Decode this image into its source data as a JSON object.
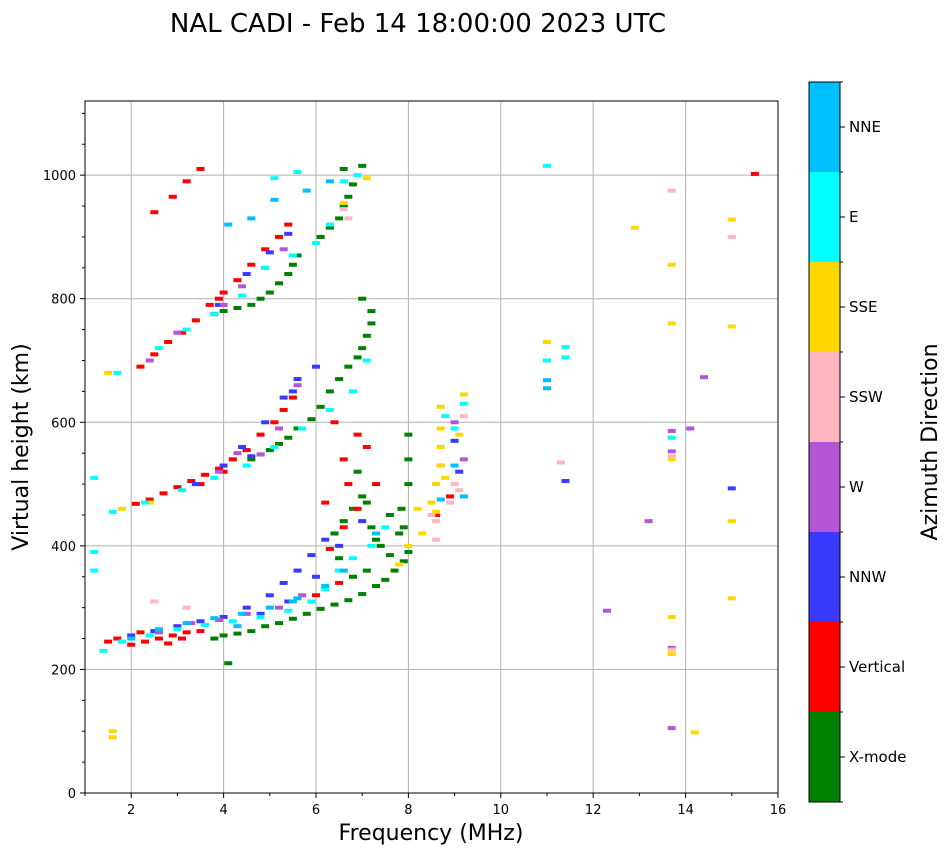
{
  "chart_data": {
    "type": "scatter",
    "title": "NAL CADI - Feb 14 18:00:00 2023 UTC",
    "xlabel": "Frequency (MHz)",
    "ylabel": "Virtual height (km)",
    "xlim": [
      1,
      16
    ],
    "ylim": [
      0,
      1120
    ],
    "xticks": [
      2,
      4,
      6,
      8,
      10,
      12,
      14,
      16
    ],
    "yticks": [
      0,
      200,
      400,
      600,
      800,
      1000
    ],
    "grid": true,
    "colorbar": {
      "label": "Azimuth Direction",
      "categories": [
        "X-mode",
        "Vertical",
        "NNW",
        "W",
        "SSW",
        "SSE",
        "E",
        "NNE"
      ],
      "colors": [
        "#008000",
        "#ff0000",
        "#3a3aff",
        "#b455d6",
        "#ffb6c1",
        "#ffd700",
        "#00ffff",
        "#00bfff"
      ]
    },
    "series": [
      {
        "name": "X-mode",
        "points": [
          [
            3.8,
            250
          ],
          [
            4.0,
            255
          ],
          [
            4.3,
            258
          ],
          [
            4.6,
            262
          ],
          [
            4.9,
            270
          ],
          [
            5.2,
            275
          ],
          [
            5.5,
            282
          ],
          [
            5.8,
            290
          ],
          [
            6.1,
            298
          ],
          [
            6.4,
            305
          ],
          [
            6.7,
            312
          ],
          [
            7.0,
            322
          ],
          [
            7.3,
            335
          ],
          [
            7.5,
            345
          ],
          [
            7.7,
            360
          ],
          [
            7.9,
            375
          ],
          [
            8.0,
            390
          ],
          [
            7.8,
            420
          ],
          [
            7.85,
            460
          ],
          [
            8.0,
            500
          ],
          [
            8.0,
            540
          ],
          [
            8.0,
            580
          ],
          [
            4.1,
            210
          ],
          [
            4.6,
            540
          ],
          [
            4.8,
            548
          ],
          [
            5.0,
            555
          ],
          [
            5.2,
            565
          ],
          [
            5.4,
            575
          ],
          [
            5.6,
            590
          ],
          [
            5.9,
            605
          ],
          [
            6.1,
            625
          ],
          [
            6.3,
            650
          ],
          [
            6.5,
            670
          ],
          [
            6.7,
            690
          ],
          [
            6.9,
            705
          ],
          [
            7.0,
            720
          ],
          [
            7.1,
            740
          ],
          [
            7.2,
            760
          ],
          [
            7.2,
            780
          ],
          [
            7.0,
            800
          ],
          [
            3.8,
            775
          ],
          [
            4.0,
            780
          ],
          [
            4.3,
            785
          ],
          [
            4.6,
            790
          ],
          [
            4.8,
            800
          ],
          [
            5.0,
            810
          ],
          [
            5.2,
            825
          ],
          [
            5.4,
            840
          ],
          [
            5.5,
            855
          ],
          [
            5.6,
            870
          ],
          [
            6.1,
            900
          ],
          [
            6.3,
            915
          ],
          [
            6.5,
            930
          ],
          [
            6.6,
            950
          ],
          [
            6.7,
            965
          ],
          [
            6.8,
            985
          ],
          [
            6.6,
            1010
          ],
          [
            7.0,
            1015
          ],
          [
            6.4,
            420
          ],
          [
            6.6,
            440
          ],
          [
            6.8,
            460
          ],
          [
            7.0,
            480
          ],
          [
            7.2,
            430
          ],
          [
            7.4,
            400
          ],
          [
            7.6,
            385
          ],
          [
            6.9,
            520
          ],
          [
            7.1,
            470
          ],
          [
            7.3,
            410
          ],
          [
            6.5,
            380
          ],
          [
            6.8,
            350
          ],
          [
            7.1,
            360
          ],
          [
            7.6,
            450
          ],
          [
            7.9,
            430
          ]
        ]
      },
      {
        "name": "Vertical",
        "points": [
          [
            1.5,
            245
          ],
          [
            1.7,
            250
          ],
          [
            2.0,
            240
          ],
          [
            2.3,
            245
          ],
          [
            2.6,
            250
          ],
          [
            2.9,
            255
          ],
          [
            3.2,
            260
          ],
          [
            3.5,
            262
          ],
          [
            2.2,
            260
          ],
          [
            2.8,
            242
          ],
          [
            3.1,
            250
          ],
          [
            6.0,
            320
          ],
          [
            6.5,
            340
          ],
          [
            6.3,
            395
          ],
          [
            6.6,
            430
          ],
          [
            6.9,
            460
          ],
          [
            7.1,
            560
          ],
          [
            6.7,
            500
          ],
          [
            6.2,
            470
          ],
          [
            7.3,
            500
          ],
          [
            2.1,
            468
          ],
          [
            2.4,
            475
          ],
          [
            2.7,
            485
          ],
          [
            3.0,
            495
          ],
          [
            3.3,
            505
          ],
          [
            3.6,
            515
          ],
          [
            3.9,
            525
          ],
          [
            4.2,
            540
          ],
          [
            4.5,
            555
          ],
          [
            4.8,
            580
          ],
          [
            5.1,
            600
          ],
          [
            5.3,
            620
          ],
          [
            5.5,
            640
          ],
          [
            4.0,
            520
          ],
          [
            3.5,
            500
          ],
          [
            6.6,
            540
          ],
          [
            6.9,
            580
          ],
          [
            6.4,
            600
          ],
          [
            2.2,
            690
          ],
          [
            2.5,
            710
          ],
          [
            2.8,
            730
          ],
          [
            3.1,
            745
          ],
          [
            3.4,
            765
          ],
          [
            3.7,
            790
          ],
          [
            4.0,
            810
          ],
          [
            4.3,
            830
          ],
          [
            4.6,
            855
          ],
          [
            4.9,
            880
          ],
          [
            5.2,
            900
          ],
          [
            5.4,
            920
          ],
          [
            3.9,
            800
          ],
          [
            3.5,
            1010
          ],
          [
            3.2,
            990
          ],
          [
            2.9,
            965
          ],
          [
            2.5,
            940
          ],
          [
            8.6,
            450
          ],
          [
            8.9,
            480
          ],
          [
            15.5,
            1002
          ]
        ]
      },
      {
        "name": "NNW",
        "points": [
          [
            2.0,
            255
          ],
          [
            2.5,
            262
          ],
          [
            3.0,
            270
          ],
          [
            3.5,
            278
          ],
          [
            4.0,
            285
          ],
          [
            4.5,
            300
          ],
          [
            5.0,
            320
          ],
          [
            5.3,
            340
          ],
          [
            5.6,
            360
          ],
          [
            5.9,
            385
          ],
          [
            6.2,
            410
          ],
          [
            4.8,
            290
          ],
          [
            5.4,
            310
          ],
          [
            6.0,
            350
          ],
          [
            3.4,
            500
          ],
          [
            4.0,
            530
          ],
          [
            4.4,
            560
          ],
          [
            4.9,
            600
          ],
          [
            5.3,
            640
          ],
          [
            5.6,
            670
          ],
          [
            4.6,
            545
          ],
          [
            5.5,
            650
          ],
          [
            3.9,
            790
          ],
          [
            4.5,
            840
          ],
          [
            5.0,
            875
          ],
          [
            5.4,
            905
          ],
          [
            6.0,
            690
          ],
          [
            6.5,
            400
          ],
          [
            7.0,
            440
          ],
          [
            9.0,
            570
          ],
          [
            9.1,
            520
          ],
          [
            11.4,
            505
          ],
          [
            15.0,
            493
          ]
        ]
      },
      {
        "name": "W",
        "points": [
          [
            2.6,
            260
          ],
          [
            3.3,
            275
          ],
          [
            3.9,
            280
          ],
          [
            4.5,
            290
          ],
          [
            5.2,
            300
          ],
          [
            5.7,
            320
          ],
          [
            4.8,
            548
          ],
          [
            5.2,
            590
          ],
          [
            5.6,
            660
          ],
          [
            4.3,
            550
          ],
          [
            3.9,
            520
          ],
          [
            4.0,
            790
          ],
          [
            4.4,
            820
          ],
          [
            4.9,
            850
          ],
          [
            5.3,
            880
          ],
          [
            2.4,
            700
          ],
          [
            3.0,
            745
          ],
          [
            8.7,
            530
          ],
          [
            9.0,
            600
          ],
          [
            9.2,
            540
          ],
          [
            12.3,
            295
          ],
          [
            13.2,
            440
          ],
          [
            13.7,
            553
          ],
          [
            13.7,
            586
          ],
          [
            14.1,
            590
          ],
          [
            14.4,
            673
          ],
          [
            13.7,
            235
          ],
          [
            13.7,
            105
          ]
        ]
      },
      {
        "name": "SSW",
        "points": [
          [
            8.6,
            410
          ],
          [
            8.6,
            440
          ],
          [
            8.5,
            450
          ],
          [
            9.1,
            490
          ],
          [
            9.2,
            610
          ],
          [
            9.0,
            500
          ],
          [
            8.9,
            470
          ],
          [
            11.3,
            535
          ],
          [
            13.7,
            975
          ],
          [
            15.0,
            900
          ],
          [
            13.7,
            545
          ],
          [
            13.7,
            232
          ],
          [
            6.6,
            945
          ],
          [
            6.7,
            930
          ],
          [
            2.5,
            310
          ],
          [
            3.2,
            300
          ]
        ]
      },
      {
        "name": "SSE",
        "points": [
          [
            8.6,
            455
          ],
          [
            8.5,
            470
          ],
          [
            8.6,
            500
          ],
          [
            8.7,
            530
          ],
          [
            8.7,
            560
          ],
          [
            8.7,
            590
          ],
          [
            8.7,
            625
          ],
          [
            9.2,
            645
          ],
          [
            8.3,
            420
          ],
          [
            8.2,
            460
          ],
          [
            7.8,
            370
          ],
          [
            8.0,
            400
          ],
          [
            8.8,
            510
          ],
          [
            9.1,
            580
          ],
          [
            7.1,
            995
          ],
          [
            6.6,
            955
          ],
          [
            1.6,
            90
          ],
          [
            1.6,
            100
          ],
          [
            1.5,
            680
          ],
          [
            11.0,
            730
          ],
          [
            12.9,
            915
          ],
          [
            13.7,
            855
          ],
          [
            13.7,
            760
          ],
          [
            13.7,
            540
          ],
          [
            13.7,
            285
          ],
          [
            13.7,
            225
          ],
          [
            14.2,
            98
          ],
          [
            15.0,
            928
          ],
          [
            15.0,
            755
          ],
          [
            15.0,
            440
          ],
          [
            15.0,
            315
          ],
          [
            1.8,
            460
          ],
          [
            2.4,
            470
          ]
        ]
      },
      {
        "name": "E",
        "points": [
          [
            1.2,
            390
          ],
          [
            1.2,
            360
          ],
          [
            1.4,
            230
          ],
          [
            1.8,
            245
          ],
          [
            2.4,
            255
          ],
          [
            3.0,
            265
          ],
          [
            3.6,
            272
          ],
          [
            4.2,
            278
          ],
          [
            4.8,
            285
          ],
          [
            5.4,
            295
          ],
          [
            5.9,
            310
          ],
          [
            6.2,
            330
          ],
          [
            6.5,
            360
          ],
          [
            6.8,
            380
          ],
          [
            7.2,
            400
          ],
          [
            7.5,
            430
          ],
          [
            1.6,
            455
          ],
          [
            2.3,
            470
          ],
          [
            3.1,
            490
          ],
          [
            3.8,
            510
          ],
          [
            4.5,
            530
          ],
          [
            5.1,
            560
          ],
          [
            5.7,
            590
          ],
          [
            6.3,
            620
          ],
          [
            6.8,
            650
          ],
          [
            7.1,
            700
          ],
          [
            1.7,
            680
          ],
          [
            2.6,
            720
          ],
          [
            3.2,
            750
          ],
          [
            3.8,
            775
          ],
          [
            4.4,
            805
          ],
          [
            4.9,
            850
          ],
          [
            5.5,
            870
          ],
          [
            6.0,
            890
          ],
          [
            6.3,
            920
          ],
          [
            6.6,
            990
          ],
          [
            6.9,
            1000
          ],
          [
            5.1,
            995
          ],
          [
            5.6,
            1005
          ],
          [
            9.0,
            590
          ],
          [
            9.2,
            630
          ],
          [
            8.8,
            610
          ],
          [
            11.0,
            1015
          ],
          [
            11.0,
            700
          ],
          [
            11.4,
            705
          ],
          [
            11.4,
            722
          ],
          [
            13.7,
            575
          ],
          [
            1.2,
            510
          ]
        ]
      },
      {
        "name": "NNE",
        "points": [
          [
            2.0,
            250
          ],
          [
            2.6,
            265
          ],
          [
            3.2,
            275
          ],
          [
            3.8,
            283
          ],
          [
            4.4,
            290
          ],
          [
            5.0,
            300
          ],
          [
            5.6,
            315
          ],
          [
            6.2,
            335
          ],
          [
            6.6,
            360
          ],
          [
            7.3,
            420
          ],
          [
            4.1,
            920
          ],
          [
            4.6,
            930
          ],
          [
            5.1,
            960
          ],
          [
            5.8,
            975
          ],
          [
            6.3,
            990
          ],
          [
            8.7,
            475
          ],
          [
            9.0,
            530
          ],
          [
            9.2,
            480
          ],
          [
            11.0,
            655
          ],
          [
            11.0,
            668
          ],
          [
            5.5,
            310
          ],
          [
            4.3,
            270
          ]
        ]
      }
    ]
  }
}
